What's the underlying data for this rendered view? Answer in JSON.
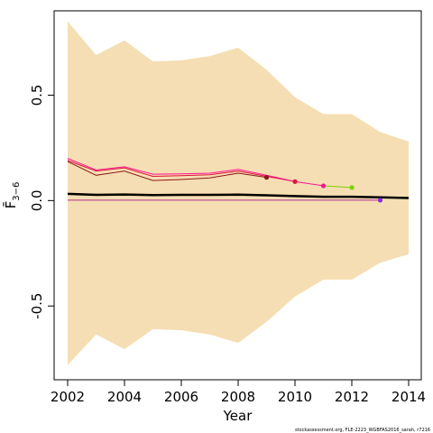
{
  "chart_data": {
    "type": "line",
    "xlabel": "Year",
    "ylabel": "F̄",
    "ylabel_sub": "3−6",
    "footer": "stockassessment.org, FLE-2223_WGBFAS2016_sarah, r7216",
    "xlim": [
      2002,
      2014
    ],
    "ylim": [
      -0.85,
      0.9
    ],
    "x_ticks": [
      2002,
      2004,
      2006,
      2008,
      2010,
      2012,
      2014
    ],
    "x_tick_labels": [
      "2002",
      "2004",
      "2006",
      "2008",
      "2010",
      "2012",
      "2014"
    ],
    "y_ticks": [
      -0.5,
      0.0,
      0.5
    ],
    "y_tick_labels": [
      "-0.5",
      "0.0",
      "0.5"
    ],
    "grid": false,
    "band": {
      "color": "#f5deb3",
      "x": [
        2002,
        2003,
        2004,
        2005,
        2006,
        2007,
        2008,
        2009,
        2010,
        2011,
        2012,
        2013,
        2014
      ],
      "upper": [
        0.85,
        0.69,
        0.76,
        0.66,
        0.665,
        0.685,
        0.725,
        0.62,
        0.49,
        0.41,
        0.41,
        0.325,
        0.28
      ],
      "lower": [
        -0.78,
        -0.635,
        -0.705,
        -0.61,
        -0.615,
        -0.635,
        -0.675,
        -0.575,
        -0.455,
        -0.375,
        -0.375,
        -0.295,
        -0.255
      ]
    },
    "main_series": {
      "color": "#000000",
      "x": [
        2002,
        2003,
        2004,
        2005,
        2006,
        2007,
        2008,
        2009,
        2010,
        2011,
        2012,
        2013,
        2014
      ],
      "y": [
        0.032,
        0.027,
        0.029,
        0.026,
        0.027,
        0.027,
        0.028,
        0.025,
        0.021,
        0.018,
        0.018,
        0.015,
        0.012
      ]
    },
    "retro_series": [
      {
        "color": "#dc143c",
        "x": [
          2002,
          2003,
          2004,
          2005,
          2006,
          2007,
          2008,
          2009,
          2010
        ],
        "y": [
          0.19,
          0.14,
          0.155,
          0.115,
          0.118,
          0.122,
          0.14,
          0.115,
          0.09
        ]
      },
      {
        "color": "#8b1a1a",
        "x": [
          2002,
          2003,
          2004,
          2005,
          2006,
          2007,
          2008,
          2009
        ],
        "y": [
          0.185,
          0.12,
          0.14,
          0.095,
          0.1,
          0.107,
          0.13,
          0.11
        ]
      },
      {
        "color": "#ff1493",
        "x": [
          2002,
          2003,
          2004,
          2005,
          2006,
          2007,
          2008,
          2009,
          2010,
          2011
        ],
        "y": [
          0.2,
          0.145,
          0.16,
          0.125,
          0.127,
          0.13,
          0.148,
          0.12,
          0.09,
          0.07
        ]
      },
      {
        "color": "#7cd000",
        "x": [
          2011,
          2012
        ],
        "y": [
          0.07,
          0.062
        ]
      },
      {
        "color": "#b03090",
        "x": [
          2002,
          2003,
          2004,
          2005,
          2006,
          2007,
          2008,
          2009,
          2010,
          2011,
          2012,
          2013
        ],
        "y": [
          0.002,
          0.002,
          0.002,
          0.002,
          0.002,
          0.002,
          0.002,
          0.002,
          0.002,
          0.002,
          0.002,
          0.002
        ]
      }
    ],
    "endpoints": [
      {
        "x": 2009,
        "y": 0.11,
        "color": "#8b1a1a"
      },
      {
        "x": 2010,
        "y": 0.09,
        "color": "#dc143c"
      },
      {
        "x": 2011,
        "y": 0.07,
        "color": "#ff1493"
      },
      {
        "x": 2012,
        "y": 0.062,
        "color": "#7cd000"
      },
      {
        "x": 2013,
        "y": 0.002,
        "color": "#8a2be2"
      }
    ]
  }
}
